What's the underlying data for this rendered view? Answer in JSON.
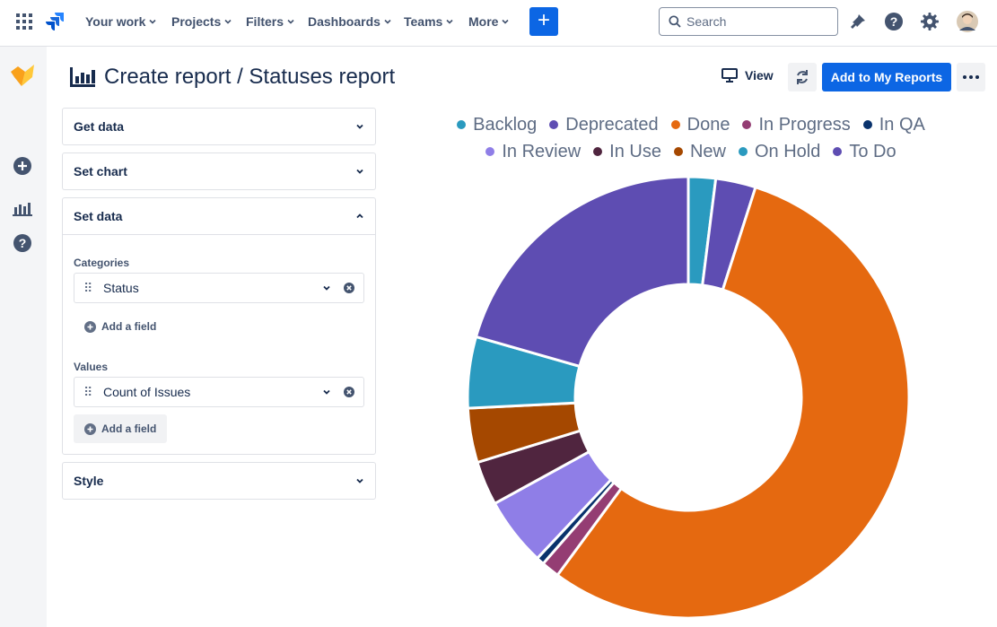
{
  "topbar": {
    "nav": [
      "Your work",
      "Projects",
      "Filters",
      "Dashboards",
      "Teams",
      "More"
    ],
    "create_symbol": "+",
    "search_placeholder": "Search"
  },
  "icons": {
    "app_switcher": "grid-icon",
    "logo": "jira-logo-icon",
    "notifications": "bell-icon",
    "help": "help-icon",
    "settings": "gear-icon",
    "avatar": "user-avatar",
    "rail": [
      "add-icon",
      "reports-icon",
      "help-icon"
    ]
  },
  "header": {
    "title": "Create report / Statuses report",
    "view_label": "View",
    "add_label": "Add to My Reports"
  },
  "panels": {
    "get_data": "Get data",
    "set_chart": "Set chart",
    "set_data": "Set data",
    "style": "Style",
    "categories_label": "Categories",
    "categories_field": "Status",
    "values_label": "Values",
    "values_field": "Count of Issues",
    "add_field_label": "Add a field"
  },
  "colors": {
    "accent": "#0c66e4"
  },
  "chart_data": {
    "type": "pie",
    "donut": true,
    "legend_position": "top",
    "categories": [
      "Backlog",
      "Deprecated",
      "Done",
      "In Progress",
      "In QA",
      "In Review",
      "In Use",
      "New",
      "On Hold",
      "To Do"
    ],
    "colors": [
      "#2a9abf",
      "#5e4db2",
      "#e56910",
      "#943d73",
      "#09326c",
      "#8f7ee7",
      "#50253f",
      "#a54800",
      "#2a9abf",
      "#5e4db2"
    ],
    "values": [
      5.5,
      3.1,
      58.2,
      1.4,
      0.6,
      5.3,
      3.4,
      4.2,
      2.1,
      21.7
    ],
    "slice_order": [
      8,
      1,
      2,
      3,
      4,
      5,
      6,
      7,
      0,
      9
    ]
  }
}
